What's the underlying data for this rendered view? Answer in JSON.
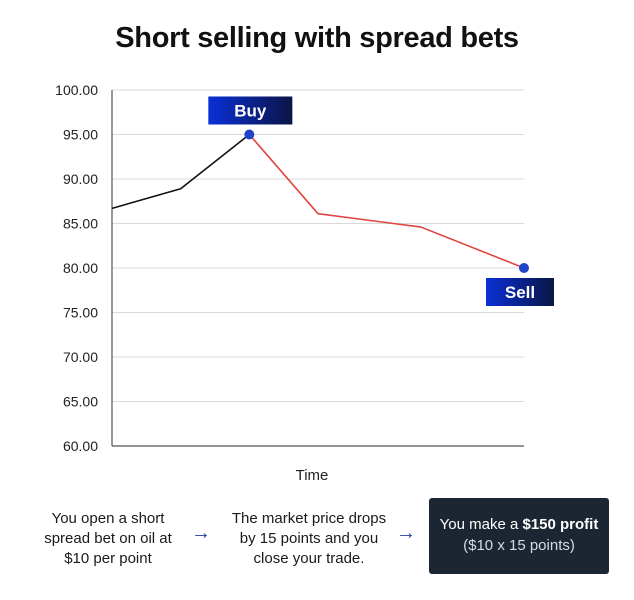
{
  "title": "Short selling with spread bets",
  "chart_data": {
    "type": "line",
    "title": "Short selling with spread bets",
    "xlabel": "Time",
    "ylabel": "",
    "ylim": [
      60,
      100
    ],
    "yticks": [
      "100.00",
      "95.00",
      "90.00",
      "85.00",
      "80.00",
      "75.00",
      "70.00",
      "65.00",
      "60.00"
    ],
    "x": [
      0,
      1,
      2,
      3,
      4,
      5,
      6
    ],
    "series": [
      {
        "color": "#111111",
        "x": [
          0,
          1,
          2
        ],
        "values": [
          86.7,
          88.9,
          95.0
        ]
      },
      {
        "color": "#e0453f",
        "x": [
          2,
          3,
          4.5,
          6
        ],
        "values": [
          95.0,
          86.1,
          84.6,
          80.0
        ]
      }
    ],
    "markers": [
      {
        "label": "Buy",
        "x": 2,
        "value": 95.0
      },
      {
        "label": "Sell",
        "x": 6,
        "value": 80.0
      }
    ],
    "grid": true
  },
  "steps": {
    "step1": [
      "You open a short",
      "spread bet on oil at",
      "$10 per point"
    ],
    "step2": [
      "The market price drops",
      "by 15 points and you",
      "close your trade."
    ],
    "arrow": "→",
    "result_prefix": "You make a ",
    "result_bold": "$150 profit",
    "result_sub": "($10 x 15 points)"
  },
  "colors": {
    "tag_gradient_start": "#0a2fd6",
    "tag_gradient_end": "#0b1545",
    "marker": "#1f44c8",
    "result_bg": "#1c2532"
  }
}
